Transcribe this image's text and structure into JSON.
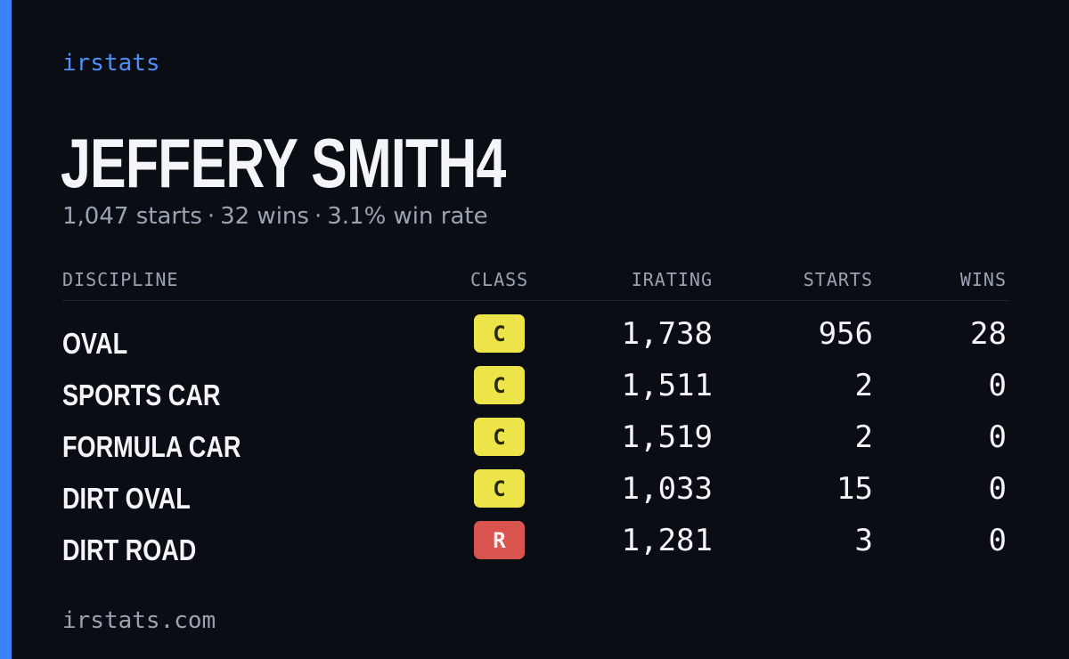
{
  "brand": "irstats",
  "driver": {
    "name": "JEFFERY SMITH4",
    "starts": "1,047 starts",
    "wins": "32 wins",
    "win_rate": "3.1% win rate",
    "separator": "·"
  },
  "table": {
    "headers": {
      "discipline": "DISCIPLINE",
      "class": "CLASS",
      "irating": "IRATING",
      "starts": "STARTS",
      "wins": "WINS"
    },
    "rows": [
      {
        "discipline": "OVAL",
        "class": "C",
        "irating": "1,738",
        "starts": "956",
        "wins": "28"
      },
      {
        "discipline": "SPORTS CAR",
        "class": "C",
        "irating": "1,511",
        "starts": "2",
        "wins": "0"
      },
      {
        "discipline": "FORMULA CAR",
        "class": "C",
        "irating": "1,519",
        "starts": "2",
        "wins": "0"
      },
      {
        "discipline": "DIRT OVAL",
        "class": "C",
        "irating": "1,033",
        "starts": "15",
        "wins": "0"
      },
      {
        "discipline": "DIRT ROAD",
        "class": "R",
        "irating": "1,281",
        "starts": "3",
        "wins": "0"
      }
    ]
  },
  "footer": "irstats.com",
  "colors": {
    "background": "#0a0d14",
    "accent": "#3b82f6",
    "class_c": "#ede44a",
    "class_r": "#d9534f"
  }
}
